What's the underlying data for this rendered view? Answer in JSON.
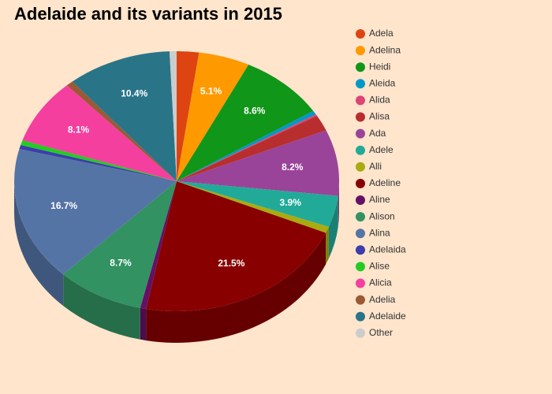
{
  "chart_data": {
    "type": "pie",
    "title": "Adelaide and its variants in 2015",
    "categories": [
      "Adela",
      "Adelina",
      "Heidi",
      "Aleida",
      "Alida",
      "Alisa",
      "Ada",
      "Adele",
      "Alli",
      "Adeline",
      "Aline",
      "Alison",
      "Alina",
      "Adelaida",
      "Alise",
      "Alicia",
      "Adelia",
      "Adelaide",
      "Other"
    ],
    "values": [
      2.2,
      5.1,
      8.6,
      0.5,
      0.2,
      2.0,
      8.2,
      3.9,
      0.8,
      21.5,
      0.6,
      8.7,
      16.7,
      0.5,
      0.6,
      8.1,
      0.7,
      10.4,
      0.7
    ],
    "value_labels": [
      null,
      "5.1%",
      "8.6%",
      null,
      null,
      null,
      "8.2%",
      "3.9%",
      null,
      "21.5%",
      null,
      "8.7%",
      "16.7%",
      null,
      null,
      "8.1%",
      null,
      "10.4%",
      null
    ],
    "colors": [
      "#dd4411",
      "#ff9900",
      "#109618",
      "#0099c6",
      "#dd4477",
      "#b82e2e",
      "#994499",
      "#22aa99",
      "#aaaa11",
      "#880000",
      "#651067",
      "#329262",
      "#5574a6",
      "#3b3eac",
      "#22cc22",
      "#f43f9f",
      "#9c5935",
      "#2a7488",
      "#cccccc"
    ],
    "legend": "right"
  }
}
